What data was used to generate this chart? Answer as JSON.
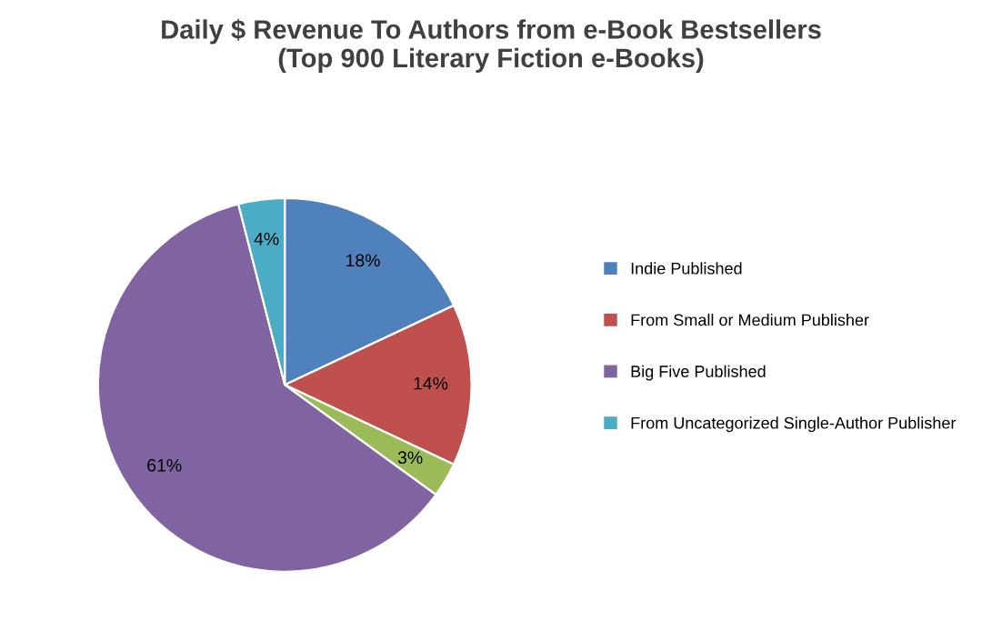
{
  "chart_data": {
    "type": "pie",
    "title": "Daily $ Revenue To Authors from e-Book Bestsellers\n(Top 900 Literary Fiction e-Books)",
    "categories": [
      "Indie Published",
      "From Small or Medium Publisher",
      null,
      "Big Five Published",
      "From Uncategorized Single-Author Publisher"
    ],
    "values": [
      18,
      14,
      3,
      61,
      4
    ],
    "colors": [
      "#4f81bd",
      "#c0504d",
      "#9bbb59",
      "#8064a2",
      "#4bacc6"
    ],
    "value_labels": [
      "18%",
      "14%",
      "3%",
      "61%",
      "4%"
    ],
    "legend": "right"
  }
}
